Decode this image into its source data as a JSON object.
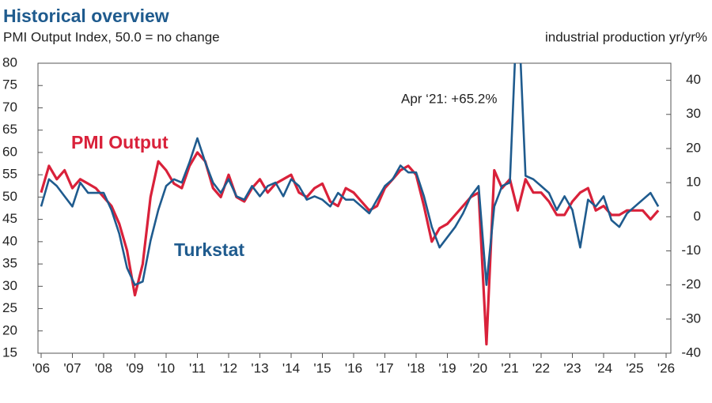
{
  "chart_data": {
    "type": "line",
    "title": "Historical overview",
    "subtitle": "PMI Output Index, 50.0 = no change",
    "y2_label": "industrial production yr/yr%",
    "annotations": [
      "Apr ‘21: +65.2%"
    ],
    "x": [
      2006,
      2006.25,
      2006.5,
      2006.75,
      2007,
      2007.25,
      2007.5,
      2007.75,
      2008,
      2008.25,
      2008.5,
      2008.75,
      2009,
      2009.25,
      2009.5,
      2009.75,
      2010,
      2010.25,
      2010.5,
      2010.75,
      2011,
      2011.25,
      2011.5,
      2011.75,
      2012,
      2012.25,
      2012.5,
      2012.75,
      2013,
      2013.25,
      2013.5,
      2013.75,
      2014,
      2014.25,
      2014.5,
      2014.75,
      2015,
      2015.25,
      2015.5,
      2015.75,
      2016,
      2016.25,
      2016.5,
      2016.75,
      2017,
      2017.25,
      2017.5,
      2017.75,
      2018,
      2018.25,
      2018.5,
      2018.75,
      2019,
      2019.25,
      2019.5,
      2019.75,
      2020,
      2020.25,
      2020.5,
      2020.75,
      2021,
      2021.25,
      2021.5,
      2021.75,
      2022,
      2022.25,
      2022.5,
      2022.75,
      2023,
      2023.25,
      2023.5,
      2023.75,
      2024,
      2024.25,
      2024.5,
      2024.75,
      2025,
      2025.25,
      2025.5,
      2025.75
    ],
    "series": [
      {
        "name": "PMI Output",
        "color": "#d9213a",
        "axis": "y",
        "values": [
          51,
          57,
          54,
          56,
          52,
          54,
          53,
          52,
          50,
          48,
          44,
          38,
          28,
          35,
          50,
          58,
          56,
          53,
          52,
          57,
          60,
          58,
          52,
          50,
          55,
          50,
          49,
          52,
          54,
          51,
          53,
          54,
          55,
          51,
          50,
          52,
          53,
          49,
          48,
          52,
          51,
          49,
          47,
          48,
          52,
          54,
          56,
          57,
          55,
          48,
          40,
          43,
          44,
          46,
          48,
          50,
          51,
          17,
          56,
          52,
          54,
          47,
          54,
          51,
          51,
          49,
          46,
          46,
          49,
          51,
          52,
          47,
          48,
          46,
          46,
          47,
          47,
          47,
          45,
          47
        ]
      },
      {
        "name": "Turkstat",
        "color": "#1f5b8e",
        "axis": "y2",
        "values": [
          3,
          11,
          9,
          6,
          3,
          10,
          7,
          7,
          7,
          2,
          -5,
          -15,
          -20,
          -19,
          -7,
          2,
          9,
          11,
          10,
          16,
          23,
          16,
          10,
          7,
          11,
          6,
          5,
          9,
          6,
          9,
          10,
          6,
          11,
          9,
          5,
          6,
          5,
          3,
          7,
          5,
          5,
          3,
          1,
          5,
          9,
          11,
          15,
          13,
          13,
          6,
          -3,
          -9,
          -6,
          -3,
          1,
          6,
          9,
          -20,
          3,
          9,
          10,
          65.2,
          12,
          11,
          9,
          7,
          2,
          6,
          2,
          -9,
          5,
          3,
          6,
          -1,
          -3,
          1,
          3,
          5,
          7,
          3
        ]
      }
    ],
    "xlim": [
      2006,
      2026
    ],
    "xticks": [
      {
        "value": 2006,
        "label": "'06"
      },
      {
        "value": 2007,
        "label": "'07"
      },
      {
        "value": 2008,
        "label": "'08"
      },
      {
        "value": 2009,
        "label": "'09"
      },
      {
        "value": 2010,
        "label": "'10"
      },
      {
        "value": 2011,
        "label": "'11"
      },
      {
        "value": 2012,
        "label": "'12"
      },
      {
        "value": 2013,
        "label": "'13"
      },
      {
        "value": 2014,
        "label": "'14"
      },
      {
        "value": 2015,
        "label": "'15"
      },
      {
        "value": 2016,
        "label": "'16"
      },
      {
        "value": 2017,
        "label": "'17"
      },
      {
        "value": 2018,
        "label": "'18"
      },
      {
        "value": 2019,
        "label": "'19"
      },
      {
        "value": 2020,
        "label": "'20"
      },
      {
        "value": 2021,
        "label": "'21"
      },
      {
        "value": 2022,
        "label": "'22"
      },
      {
        "value": 2023,
        "label": "'23"
      },
      {
        "value": 2024,
        "label": "'24"
      },
      {
        "value": 2025,
        "label": "'25"
      },
      {
        "value": 2026,
        "label": "'26"
      }
    ],
    "ylim": [
      15,
      80
    ],
    "yticks": [
      15,
      20,
      25,
      30,
      35,
      40,
      45,
      50,
      55,
      60,
      65,
      70,
      75,
      80
    ],
    "y2lim": [
      -40,
      45
    ],
    "y2ticks": [
      -40,
      -30,
      -20,
      -10,
      0,
      10,
      20,
      30,
      40
    ],
    "grid": false
  }
}
